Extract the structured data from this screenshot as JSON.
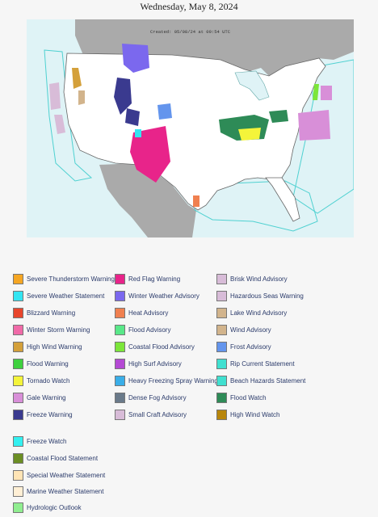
{
  "header": {
    "date": "Wednesday, May 8, 2024"
  },
  "map": {
    "created": "Created: 05/08/24 at 09:54 UTC",
    "colors": {
      "water": "#dff3f6",
      "land": "#ffffff",
      "foreign": "#aaaaaa",
      "marine_zone": "#4fd1d1"
    }
  },
  "legend": {
    "columns": [
      [
        {
          "label": "Severe Thunderstorm Warning",
          "color": "#f5a623"
        },
        {
          "label": "Severe Weather Statement",
          "color": "#33e5f2"
        },
        {
          "label": "Blizzard Warning",
          "color": "#e8452c"
        },
        {
          "label": "Winter Storm Warning",
          "color": "#f06aa8"
        },
        {
          "label": "High Wind Warning",
          "color": "#d4a03a"
        },
        {
          "label": "Flood Warning",
          "color": "#3fd13f"
        },
        {
          "label": "Tornado Watch",
          "color": "#f4f43a"
        },
        {
          "label": "Gale Warning",
          "color": "#d88fd8"
        },
        {
          "label": "Freeze Warning",
          "color": "#3a3a8f"
        }
      ],
      [
        {
          "label": "Red Flag Warning",
          "color": "#e8248a"
        },
        {
          "label": "Winter Weather Advisory",
          "color": "#7b68ee"
        },
        {
          "label": "Heat Advisory",
          "color": "#f08050"
        },
        {
          "label": "Flood Advisory",
          "color": "#59e889"
        },
        {
          "label": "Coastal Flood Advisory",
          "color": "#7ce63a"
        },
        {
          "label": "High Surf Advisory",
          "color": "#b44ad4"
        },
        {
          "label": "Heavy Freezing Spray Warning",
          "color": "#3aaee8"
        },
        {
          "label": "Dense Fog Advisory",
          "color": "#6a7a8a"
        },
        {
          "label": "Small Craft Advisory",
          "color": "#d8bcd8"
        }
      ],
      [
        {
          "label": "Brisk Wind Advisory",
          "color": "#d8bcd8"
        },
        {
          "label": "Hazardous Seas Warning",
          "color": "#d8bcd8"
        },
        {
          "label": "Lake Wind Advisory",
          "color": "#d2b48c"
        },
        {
          "label": "Wind Advisory",
          "color": "#d2b48c"
        },
        {
          "label": "Frost Advisory",
          "color": "#6495ed"
        },
        {
          "label": "Rip Current Statement",
          "color": "#40e0d0"
        },
        {
          "label": "Beach Hazards Statement",
          "color": "#40e0d0"
        },
        {
          "label": "Flood Watch",
          "color": "#2e8b57"
        },
        {
          "label": "High Wind Watch",
          "color": "#b8860b"
        }
      ]
    ],
    "extra": [
      {
        "label": "Freeze Watch",
        "color": "#33f0f0"
      },
      {
        "label": "Coastal Flood Statement",
        "color": "#6b8e23"
      },
      {
        "label": "Special Weather Statement",
        "color": "#ffe4b5"
      },
      {
        "label": "Marine Weather Statement",
        "color": "#ffefd5"
      },
      {
        "label": "Hydrologic Outlook",
        "color": "#90ee90"
      }
    ]
  }
}
